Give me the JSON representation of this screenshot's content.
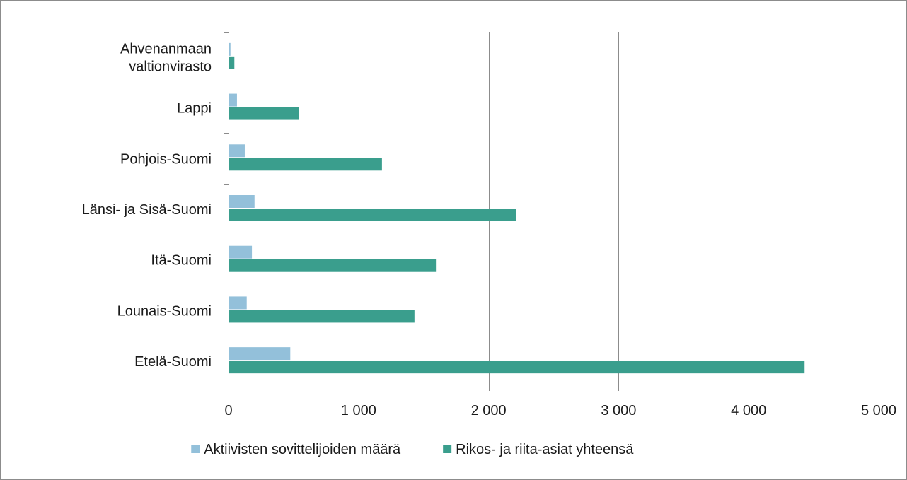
{
  "chart_data": {
    "type": "bar",
    "orientation": "horizontal",
    "categories": [
      [
        "Ahvenanmaan",
        "valtionvirasto"
      ],
      [
        "Lappi"
      ],
      [
        "Pohjois-Suomi"
      ],
      [
        "Länsi- ja Sisä-Suomi"
      ],
      [
        "Itä-Suomi"
      ],
      [
        "Lounais-Suomi"
      ],
      [
        "Etelä-Suomi"
      ]
    ],
    "series": [
      {
        "name": "Aktiivisten sovittelijoiden määrä",
        "color": "#93c0da",
        "values": [
          15,
          65,
          125,
          200,
          180,
          140,
          475
        ]
      },
      {
        "name": "Rikos- ja riita-asiat yhteensä",
        "color": "#3a9e8d",
        "values": [
          45,
          540,
          1180,
          2210,
          1595,
          1430,
          4430
        ]
      }
    ],
    "xlim": [
      0,
      5000
    ],
    "ticks": [
      {
        "value": 0,
        "label": "0"
      },
      {
        "value": 1000,
        "label": "1 000"
      },
      {
        "value": 2000,
        "label": "2 000"
      },
      {
        "value": 3000,
        "label": "3 000"
      },
      {
        "value": 4000,
        "label": "4 000"
      },
      {
        "value": 5000,
        "label": "5 000"
      }
    ],
    "grid": true,
    "legend_position": "bottom",
    "axis_color": "#8c8c8c",
    "grid_color": "#8c8c8c"
  }
}
